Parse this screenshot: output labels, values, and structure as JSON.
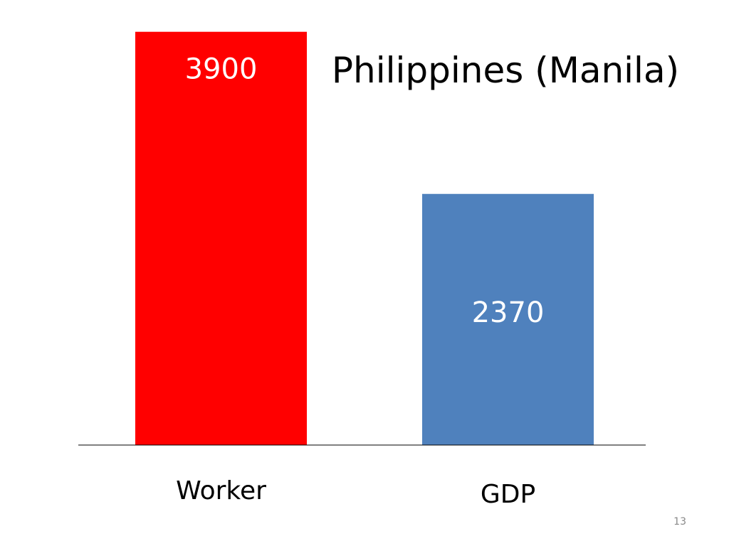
{
  "chart_data": {
    "type": "bar",
    "title": "Philippines (Manila)",
    "categories": [
      "Worker",
      "GDP"
    ],
    "values": [
      3900,
      2370
    ],
    "data_labels": [
      "3900",
      "2370"
    ],
    "ylim": [
      0,
      4200
    ],
    "grid": false,
    "legend": "none",
    "colors": [
      "#FF0000",
      "#4F81BD"
    ]
  },
  "page": {
    "number": "13"
  }
}
